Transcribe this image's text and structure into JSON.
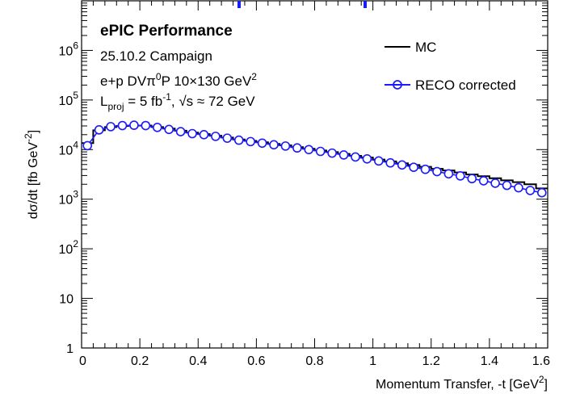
{
  "chart_data": {
    "type": "line",
    "xlabel": "Momentum Transfer, -t [GeV²]",
    "ylabel": "dσ/dt [fb GeV⁻²]",
    "xlim": [
      0,
      1.6
    ],
    "ylim": [
      1,
      10000000
    ],
    "yscale": "log",
    "x_ticks": [
      "0",
      "0.2",
      "0.4",
      "0.6",
      "0.8",
      "1",
      "1.2",
      "1.4",
      "1.6"
    ],
    "y_ticks": [
      {
        "value": 1,
        "base": "1",
        "exp": ""
      },
      {
        "value": 10,
        "base": "10",
        "exp": ""
      },
      {
        "value": 100,
        "base": "10",
        "exp": "2"
      },
      {
        "value": 1000,
        "base": "10",
        "exp": "3"
      },
      {
        "value": 10000,
        "base": "10",
        "exp": "4"
      },
      {
        "value": 100000,
        "base": "10",
        "exp": "5"
      },
      {
        "value": 1000000,
        "base": "10",
        "exp": "6"
      }
    ],
    "grid": false,
    "legend_position": "top-right",
    "annotations": {
      "title": "ePIC Performance",
      "campaign": "25.10.2 Campaign",
      "process": "e+p DVπ⁰P 10×130 GeV²",
      "lumi": "L",
      "lumi_sub": "proj",
      "lumi_val": " = 5 fb⁻¹, ",
      "sqrt_s": "√s",
      "energy": " ≈ 72 GeV"
    },
    "series": [
      {
        "name": "MC",
        "style": "histogram",
        "color": "#000000",
        "bin_edges": [
          0,
          0.04,
          0.08,
          0.12,
          0.16,
          0.2,
          0.24,
          0.28,
          0.32,
          0.36,
          0.4,
          0.44,
          0.48,
          0.52,
          0.56,
          0.6,
          0.64,
          0.68,
          0.72,
          0.76,
          0.8,
          0.84,
          0.88,
          0.92,
          0.96,
          1.0,
          1.04,
          1.08,
          1.12,
          1.16,
          1.2,
          1.24,
          1.28,
          1.32,
          1.36,
          1.4,
          1.44,
          1.48,
          1.52,
          1.56,
          1.6
        ],
        "values": [
          13500,
          24500,
          28500,
          30000,
          30500,
          30500,
          28500,
          26500,
          24000,
          22000,
          20500,
          19000,
          17500,
          16000,
          15000,
          14000,
          13000,
          12200,
          11200,
          10400,
          9600,
          8900,
          8200,
          7500,
          6900,
          6300,
          5800,
          5300,
          4900,
          4500,
          4100,
          3800,
          3450,
          3150,
          2900,
          2650,
          2400,
          2200,
          2000,
          1650
        ]
      },
      {
        "name": "RECO corrected",
        "style": "markers",
        "color": "#1a1aff",
        "x": [
          0.02,
          0.06,
          0.1,
          0.14,
          0.18,
          0.22,
          0.26,
          0.3,
          0.34,
          0.38,
          0.42,
          0.46,
          0.5,
          0.54,
          0.58,
          0.62,
          0.66,
          0.7,
          0.74,
          0.78,
          0.82,
          0.86,
          0.9,
          0.94,
          0.98,
          1.02,
          1.06,
          1.1,
          1.14,
          1.18,
          1.22,
          1.26,
          1.3,
          1.34,
          1.38,
          1.42,
          1.46,
          1.5,
          1.54,
          1.58
        ],
        "values": [
          12000,
          25000,
          29000,
          30500,
          31000,
          30500,
          28000,
          25500,
          23000,
          21000,
          20000,
          18500,
          17000,
          15500,
          14500,
          13500,
          12500,
          11800,
          10800,
          10000,
          9200,
          8500,
          7800,
          7100,
          6500,
          5900,
          5400,
          4900,
          4400,
          4000,
          3600,
          3250,
          2950,
          2600,
          2350,
          2100,
          1900,
          1700,
          1500,
          1350
        ]
      }
    ]
  }
}
